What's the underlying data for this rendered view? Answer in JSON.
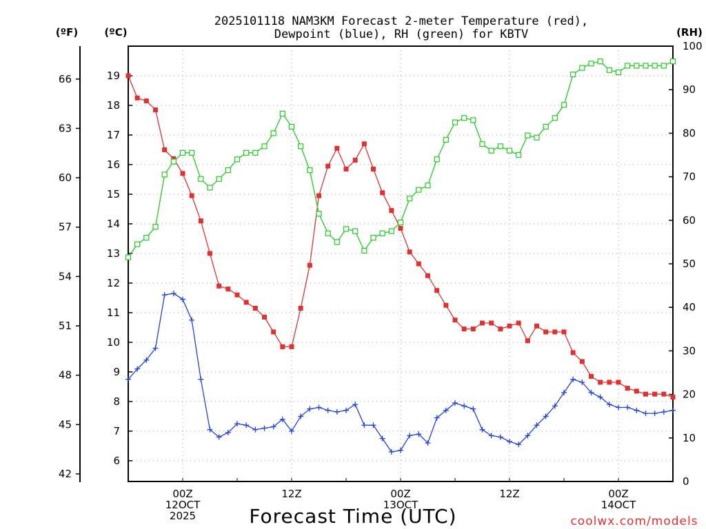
{
  "chart_data": {
    "type": "line",
    "title_line1": "2025101118 NAM3KM Forecast 2-meter Temperature (red),",
    "title_line2": "Dewpoint (blue), RH (green) for KBTV",
    "xlabel": "Forecast Time (UTC)",
    "credit": "coolwx.com/models",
    "units": {
      "fahrenheit": "(ºF)",
      "celsius": "(ºC)",
      "rh": "(RH)"
    },
    "x_range_hours": [
      18,
      78
    ],
    "y_celsius_range": [
      5.3,
      20.0
    ],
    "y_rh_range": [
      0,
      100
    ],
    "y_celsius_ticks": [
      "6",
      "7",
      "8",
      "9",
      "10",
      "11",
      "12",
      "13",
      "14",
      "15",
      "16",
      "17",
      "18",
      "19"
    ],
    "y_fahrenheit_ticks": [
      "42",
      "45",
      "48",
      "51",
      "54",
      "57",
      "60",
      "63",
      "66"
    ],
    "y_rh_ticks": [
      "0",
      "10",
      "20",
      "30",
      "40",
      "50",
      "60",
      "70",
      "80",
      "90",
      "100"
    ],
    "x_tick_labels": [
      {
        "hour": 24,
        "lines": [
          "00Z",
          "12OCT",
          "2025"
        ]
      },
      {
        "hour": 36,
        "lines": [
          "12Z"
        ]
      },
      {
        "hour": 48,
        "lines": [
          "00Z",
          "13OCT"
        ]
      },
      {
        "hour": 60,
        "lines": [
          "12Z"
        ]
      },
      {
        "hour": 72,
        "lines": [
          "00Z",
          "14OCT"
        ]
      }
    ],
    "colors": {
      "temperature": "#e03030",
      "dewpoint": "#2040e0",
      "rh": "#20cc20"
    },
    "x_hours": [
      18,
      19,
      20,
      21,
      22,
      23,
      24,
      25,
      26,
      27,
      28,
      29,
      30,
      31,
      32,
      33,
      34,
      35,
      36,
      37,
      38,
      39,
      40,
      41,
      42,
      43,
      44,
      45,
      46,
      47,
      48,
      49,
      50,
      51,
      52,
      53,
      54,
      55,
      56,
      57,
      58,
      59,
      60,
      61,
      62,
      63,
      64,
      65,
      66,
      67,
      68,
      69,
      70,
      71,
      72,
      73,
      74,
      75,
      76,
      77,
      78
    ],
    "series": [
      {
        "name": "Temperature",
        "units": "C",
        "values": [
          19.0,
          18.25,
          18.15,
          17.85,
          16.5,
          16.2,
          15.7,
          14.95,
          14.1,
          13.0,
          11.9,
          11.8,
          11.6,
          11.35,
          11.15,
          10.85,
          10.35,
          9.85,
          9.85,
          11.15,
          12.6,
          14.95,
          15.95,
          16.55,
          15.85,
          16.15,
          16.7,
          15.85,
          15.05,
          14.45,
          13.85,
          13.05,
          12.65,
          12.25,
          11.75,
          11.25,
          10.75,
          10.45,
          10.45,
          10.65,
          10.65,
          10.45,
          10.55,
          10.65,
          10.05,
          10.55,
          10.35,
          10.35,
          10.35,
          9.65,
          9.35,
          8.85,
          8.65,
          8.65,
          8.65,
          8.45,
          8.35,
          8.25,
          8.25,
          8.25,
          8.15
        ]
      },
      {
        "name": "Dewpoint",
        "units": "C",
        "values": [
          8.75,
          9.1,
          9.4,
          9.8,
          11.6,
          11.65,
          11.45,
          10.75,
          8.75,
          7.05,
          6.8,
          6.95,
          7.25,
          7.2,
          7.05,
          7.1,
          7.15,
          7.4,
          7.0,
          7.5,
          7.75,
          7.8,
          7.7,
          7.65,
          7.7,
          7.9,
          7.2,
          7.2,
          6.75,
          6.3,
          6.35,
          6.85,
          6.9,
          6.6,
          7.45,
          7.7,
          7.95,
          7.85,
          7.75,
          7.05,
          6.85,
          6.8,
          6.65,
          6.55,
          6.85,
          7.2,
          7.5,
          7.85,
          8.3,
          8.75,
          8.65,
          8.3,
          8.15,
          7.9,
          7.8,
          7.8,
          7.7,
          7.6,
          7.6,
          7.65,
          7.7
        ]
      },
      {
        "name": "Relative Humidity",
        "units": "%",
        "values": [
          51.5,
          54.5,
          56,
          58.5,
          70.5,
          73.5,
          75.5,
          75.5,
          69.5,
          67.5,
          69.5,
          71.5,
          74,
          75.5,
          75.5,
          77,
          80,
          84.5,
          81.5,
          77,
          71.5,
          61.5,
          57,
          55,
          58,
          57.5,
          53,
          56,
          57,
          57.5,
          59.5,
          65,
          67,
          68,
          74,
          78.5,
          82.5,
          83.5,
          83,
          77.5,
          76,
          77,
          76,
          75,
          79.5,
          79,
          81.5,
          83.5,
          86.5,
          93.5,
          95,
          96,
          96.5,
          94.5,
          94,
          95.5,
          95.5,
          95.5,
          95.5,
          95.5,
          96.5
        ]
      }
    ]
  }
}
